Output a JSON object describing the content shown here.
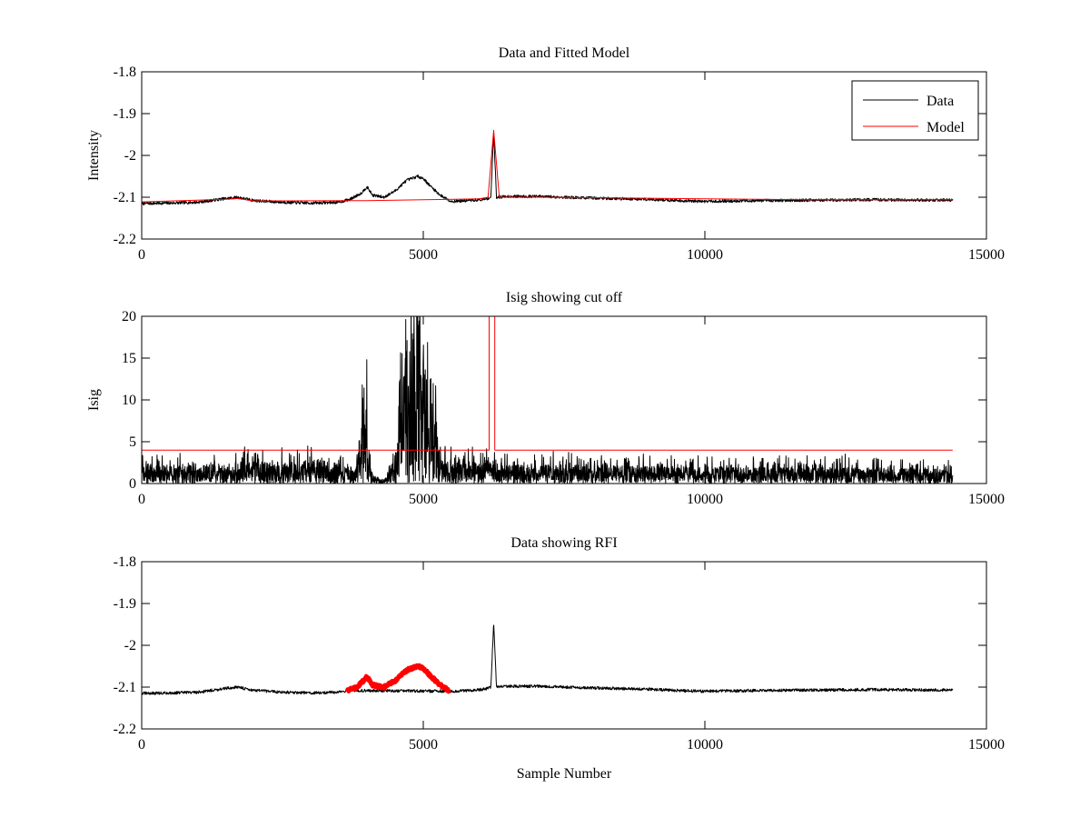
{
  "chart_data": [
    {
      "type": "line",
      "title": "Data and Fitted Model",
      "xlabel": "",
      "ylabel": "Intensity",
      "xlim": [
        0,
        15000
      ],
      "ylim": [
        -2.2,
        -1.8
      ],
      "xticks": [
        0,
        5000,
        10000,
        15000
      ],
      "xtick_labels": [
        "0",
        "5000",
        "10000",
        "15000"
      ],
      "yticks": [
        -1.8,
        -1.9,
        -2,
        -2.1,
        -2.2
      ],
      "ytick_labels": [
        "-1.8",
        "-1.9",
        "-2",
        "-2.1",
        "-2.2"
      ],
      "grid": false,
      "legend": "top-right",
      "series": [
        {
          "name": "Data",
          "color": "#000000",
          "x": [
            0,
            500,
            1000,
            1500,
            1700,
            2000,
            2500,
            3000,
            3500,
            3700,
            3900,
            4000,
            4100,
            4300,
            4500,
            4700,
            4900,
            5000,
            5100,
            5300,
            5500,
            5800,
            6100,
            6200,
            6250,
            6300,
            6500,
            7000,
            7500,
            8000,
            9000,
            9500,
            10000,
            11000,
            12000,
            13000,
            14400
          ],
          "y": [
            -2.115,
            -2.114,
            -2.112,
            -2.103,
            -2.1,
            -2.108,
            -2.112,
            -2.114,
            -2.112,
            -2.105,
            -2.09,
            -2.075,
            -2.095,
            -2.1,
            -2.085,
            -2.06,
            -2.05,
            -2.055,
            -2.07,
            -2.095,
            -2.11,
            -2.108,
            -2.105,
            -2.1,
            -1.945,
            -2.1,
            -2.098,
            -2.098,
            -2.1,
            -2.102,
            -2.105,
            -2.108,
            -2.11,
            -2.108,
            -2.107,
            -2.106,
            -2.107
          ]
        },
        {
          "name": "Model",
          "color": "#ff0000",
          "x": [
            0,
            1500,
            1700,
            2000,
            4000,
            5000,
            6000,
            6150,
            6250,
            6350,
            7000,
            8000,
            10000,
            12000,
            14400
          ],
          "y": [
            -2.111,
            -2.105,
            -2.103,
            -2.109,
            -2.108,
            -2.106,
            -2.104,
            -2.1,
            -1.94,
            -2.1,
            -2.1,
            -2.101,
            -2.104,
            -2.106,
            -2.106
          ]
        }
      ]
    },
    {
      "type": "line",
      "title": "Isig showing cut off",
      "xlabel": "",
      "ylabel": "Isig",
      "xlim": [
        0,
        15000
      ],
      "ylim": [
        0,
        20
      ],
      "xticks": [
        0,
        5000,
        10000,
        15000
      ],
      "xtick_labels": [
        "0",
        "5000",
        "10000",
        "15000"
      ],
      "yticks": [
        0,
        5,
        10,
        15,
        20
      ],
      "ytick_labels": [
        "0",
        "5",
        "10",
        "15",
        "20"
      ],
      "grid": false,
      "series": [
        {
          "color": "#000000",
          "x": [
            0,
            500,
            1000,
            1500,
            2000,
            2500,
            3000,
            3500,
            3800,
            3900,
            3950,
            4000,
            4050,
            4100,
            4300,
            4500,
            4600,
            4700,
            4800,
            4900,
            5000,
            5100,
            5200,
            5300,
            5500,
            6000,
            6500,
            7000,
            8000,
            9000,
            10000,
            11000,
            12000,
            13000,
            14000,
            14400
          ],
          "y": [
            1.5,
            1.4,
            1.3,
            1.4,
            1.6,
            1.6,
            1.8,
            1.5,
            1.0,
            4.0,
            8.0,
            6.0,
            2.5,
            0.6,
            0.3,
            2.0,
            6.0,
            10.5,
            12.5,
            13.0,
            12.0,
            9.0,
            5.5,
            2.0,
            1.6,
            1.6,
            1.4,
            1.4,
            1.4,
            1.3,
            1.3,
            1.2,
            1.2,
            1.2,
            1.1,
            1.0
          ]
        },
        {
          "color": "#ff0000",
          "x": [
            0,
            6170,
            6170,
            6270,
            6270,
            14400
          ],
          "y": [
            4,
            4,
            20,
            20,
            4,
            4
          ]
        }
      ]
    },
    {
      "type": "line",
      "title": "Data showing RFI",
      "xlabel": "Sample Number",
      "ylabel": "",
      "xlim": [
        0,
        15000
      ],
      "ylim": [
        -2.2,
        -1.8
      ],
      "xticks": [
        0,
        5000,
        10000,
        15000
      ],
      "xtick_labels": [
        "0",
        "5000",
        "10000",
        "15000"
      ],
      "yticks": [
        -1.8,
        -1.9,
        -2,
        -2.1,
        -2.2
      ],
      "ytick_labels": [
        "-1.8",
        "-1.9",
        "-2",
        "-2.1",
        "-2.2"
      ],
      "grid": false,
      "series": [
        {
          "color": "#000000",
          "x": [
            0,
            500,
            1000,
            1500,
            1700,
            2000,
            2500,
            3000,
            3500,
            3700,
            5500,
            5800,
            6100,
            6200,
            6250,
            6300,
            6500,
            7000,
            7500,
            8000,
            9000,
            9500,
            10000,
            11000,
            12000,
            13000,
            14400
          ],
          "y": [
            -2.115,
            -2.114,
            -2.112,
            -2.103,
            -2.1,
            -2.108,
            -2.112,
            -2.114,
            -2.112,
            -2.108,
            -2.11,
            -2.108,
            -2.105,
            -2.1,
            -1.945,
            -2.1,
            -2.098,
            -2.098,
            -2.1,
            -2.102,
            -2.105,
            -2.108,
            -2.11,
            -2.108,
            -2.107,
            -2.106,
            -2.107
          ]
        },
        {
          "color": "#ff0000",
          "x": [
            3650,
            3800,
            3900,
            4000,
            4100,
            4300,
            4500,
            4700,
            4900,
            5000,
            5100,
            5300,
            5450
          ],
          "y": [
            -2.107,
            -2.102,
            -2.09,
            -2.075,
            -2.095,
            -2.1,
            -2.085,
            -2.06,
            -2.05,
            -2.055,
            -2.07,
            -2.095,
            -2.108
          ]
        }
      ]
    }
  ]
}
